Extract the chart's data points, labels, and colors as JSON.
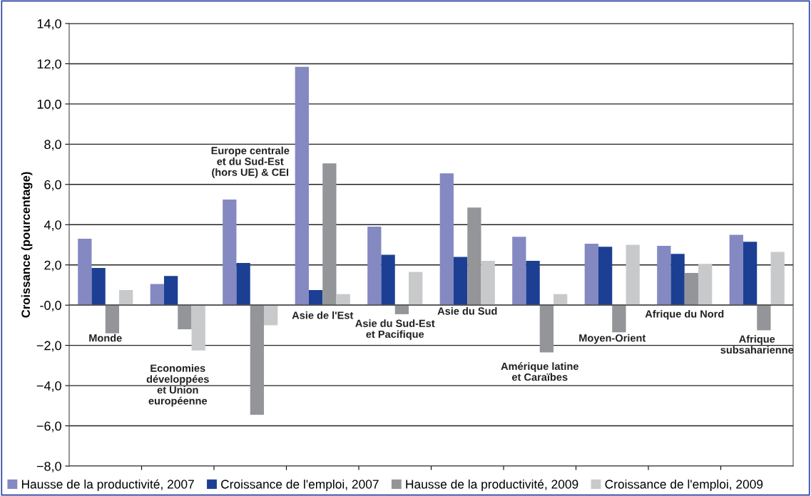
{
  "chart_data": {
    "type": "bar",
    "ylabel": "Croissance (pourcentage)",
    "categories": [
      "Monde",
      "Economies\ndéveloppées\net Union\neuropéenne",
      "Europe centrale\net du Sud-Est\n(hors UE) & CEI",
      "Asie de l'Est",
      "Asie du Sud-Est\net Pacifique",
      "Asie du Sud",
      "Amérique latine\net Caraïbes",
      "Moyen-Orient",
      "Afrique du Nord",
      "Afrique\nsubsaharienne"
    ],
    "series": [
      {
        "name": "Hausse de la productivité, 2007",
        "color": "#8489c2",
        "values": [
          3.3,
          1.05,
          5.25,
          11.85,
          3.9,
          6.55,
          3.4,
          3.05,
          2.95,
          3.5
        ]
      },
      {
        "name": "Croissance de l'emploi, 2007",
        "color": "#1c3f94",
        "values": [
          1.85,
          1.45,
          2.1,
          0.75,
          2.5,
          2.4,
          2.2,
          2.9,
          2.55,
          3.15
        ]
      },
      {
        "name": "Hausse de la productivité, 2009",
        "color": "#949599",
        "values": [
          -1.4,
          -1.2,
          -5.45,
          7.05,
          -0.45,
          4.85,
          -2.35,
          -1.35,
          1.6,
          -1.25
        ]
      },
      {
        "name": "Croissance de l'emploi, 2009",
        "color": "#c8c9cb",
        "values": [
          0.75,
          -2.25,
          -1.0,
          0.55,
          1.65,
          2.2,
          0.55,
          3.0,
          2.05,
          2.65
        ]
      }
    ],
    "ylim": [
      -8,
      14
    ],
    "yticks": [
      {
        "value": -8,
        "label": "−8,0"
      },
      {
        "value": -6,
        "label": "−6,0"
      },
      {
        "value": -4,
        "label": "−4,0"
      },
      {
        "value": -2,
        "label": "−2,0"
      },
      {
        "value": 0,
        "label": "-0,0"
      },
      {
        "value": 2,
        "label": "2,0"
      },
      {
        "value": 4,
        "label": "4,0"
      },
      {
        "value": 6,
        "label": "6,0"
      },
      {
        "value": 8,
        "label": "8,0"
      },
      {
        "value": 10,
        "label": "10,0"
      },
      {
        "value": 12,
        "label": "12,0"
      },
      {
        "value": 14,
        "label": "14,0"
      }
    ],
    "grid": "y",
    "legend": "bottom"
  }
}
